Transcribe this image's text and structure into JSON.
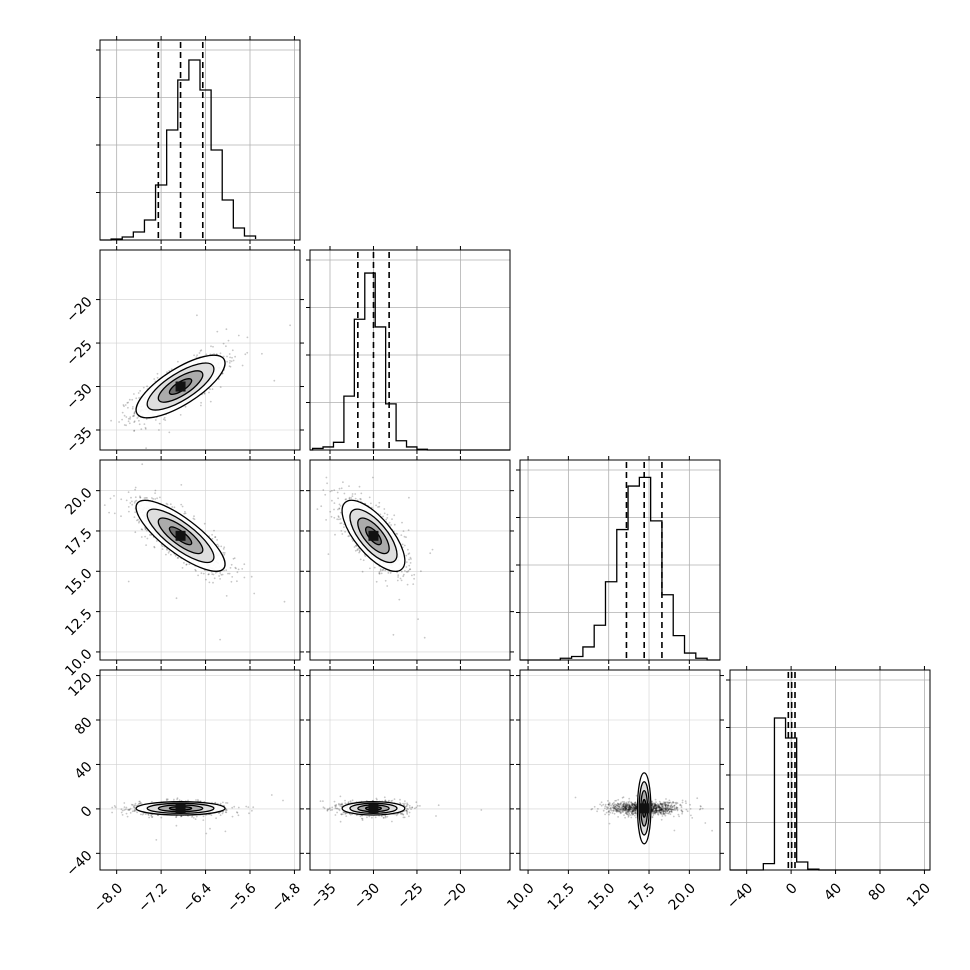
{
  "chart_data": {
    "type": "corner",
    "description_of_layout": "lower-triangular 4x4 grid of panels; diagonal = 1D histograms with 16/50/84 percentile dashed lines; off-diagonal = 2D scatter density with contours",
    "grid": true,
    "parameters": [
      {
        "ticks": [
          "−8.0",
          "−7.2",
          "−6.4",
          "−5.6",
          "−4.8"
        ],
        "tick_values": [
          -8.0,
          -7.2,
          -6.4,
          -5.6,
          -4.8
        ],
        "range": [
          -8.3,
          -4.7
        ],
        "median": -6.85,
        "q16": -7.25,
        "q84": -6.45,
        "sigma": 0.4
      },
      {
        "ticks": [
          "−35",
          "−30",
          "−25",
          "−20"
        ],
        "tick_values": [
          -35,
          -30,
          -25,
          -20
        ],
        "range": [
          -37.3,
          -14.3
        ],
        "median": -30.0,
        "q16": -31.8,
        "q84": -28.2,
        "sigma": 1.8
      },
      {
        "ticks": [
          "10.0",
          "12.5",
          "15.0",
          "17.5",
          "20.0"
        ],
        "tick_values": [
          10.0,
          12.5,
          15.0,
          17.5,
          20.0
        ],
        "range": [
          9.5,
          21.9
        ],
        "median": 17.2,
        "q16": 16.1,
        "q84": 18.3,
        "sigma": 1.1
      },
      {
        "ticks": [
          "−40",
          "0",
          "40",
          "80",
          "120"
        ],
        "tick_values": [
          -40,
          0,
          40,
          80,
          120
        ],
        "range": [
          -55,
          125
        ],
        "median": 0.5,
        "q16": -2.5,
        "q84": 3.5,
        "sigma": 3.0
      }
    ],
    "diagonal_histograms": [
      {
        "param": 0,
        "bin_edges": [
          -8.1,
          -7.9,
          -7.7,
          -7.5,
          -7.3,
          -7.1,
          -6.9,
          -6.7,
          -6.5,
          -6.3,
          -6.1,
          -5.9,
          -5.7,
          -5.5
        ],
        "counts": [
          1,
          3,
          8,
          20,
          55,
          110,
          160,
          180,
          150,
          90,
          40,
          12,
          4,
          1
        ],
        "ylim": [
          0,
          200
        ]
      },
      {
        "param": 1,
        "bin_edges": [
          -37.0,
          -35.8,
          -34.6,
          -33.4,
          -32.2,
          -31.0,
          -29.8,
          -28.6,
          -27.4,
          -26.2,
          -25.0,
          -23.8
        ],
        "counts": [
          2,
          4,
          10,
          70,
          170,
          230,
          160,
          60,
          12,
          4,
          1
        ],
        "ylim": [
          0,
          260
        ]
      },
      {
        "param": 2,
        "bin_edges": [
          12.0,
          12.7,
          13.4,
          14.1,
          14.8,
          15.5,
          16.2,
          16.9,
          17.6,
          18.3,
          19.0,
          19.7,
          20.4,
          21.1
        ],
        "counts": [
          2,
          4,
          15,
          40,
          90,
          150,
          200,
          210,
          160,
          75,
          28,
          8,
          2
        ],
        "ylim": [
          0,
          230
        ]
      },
      {
        "param": 3,
        "bin_edges": [
          -25,
          -15,
          -5,
          5,
          15,
          25
        ],
        "counts": [
          8,
          190,
          165,
          10,
          1
        ],
        "ylim": [
          0,
          250
        ]
      }
    ],
    "correlation_matrix": [
      [
        1.0,
        0.75,
        -0.8,
        0.0
      ],
      [
        0.75,
        1.0,
        -0.7,
        0.0
      ],
      [
        -0.8,
        -0.7,
        1.0,
        0.0
      ],
      [
        0.0,
        0.0,
        0.0,
        1.0
      ]
    ],
    "xlabel": "",
    "ylabel": ""
  }
}
